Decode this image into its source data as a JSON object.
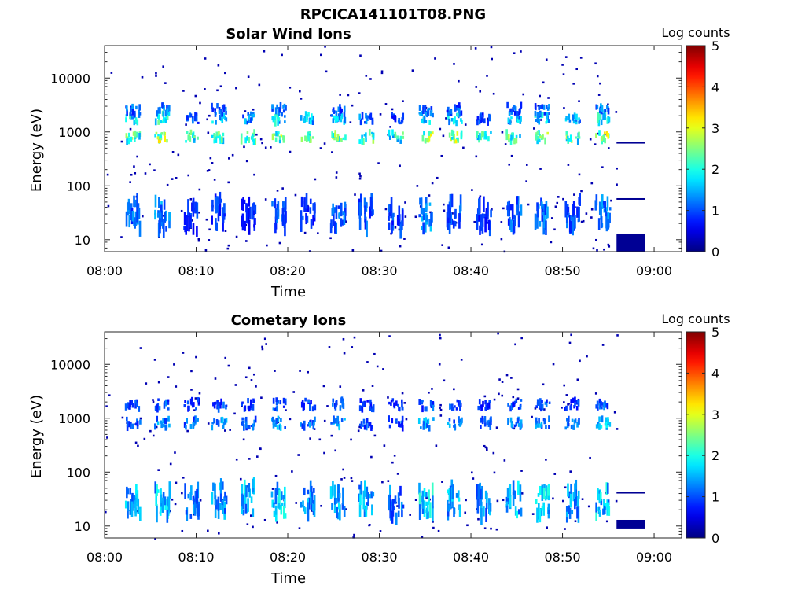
{
  "figure_title": "RPCICA141101T08.PNG",
  "chart_data": [
    {
      "type": "heatmap",
      "title": "Solar Wind Ions",
      "xlabel": "Time",
      "ylabel": "Energy (eV)",
      "colorbar_label": "Log counts",
      "x_ticks": [
        "08:00",
        "08:10",
        "08:20",
        "08:30",
        "08:40",
        "08:50",
        "09:00"
      ],
      "xlim_minutes": [
        0,
        63
      ],
      "y_scale": "log",
      "ylim": [
        6,
        40000
      ],
      "y_ticks": [
        {
          "value": 10,
          "label": "10"
        },
        {
          "value": 100,
          "label": "100"
        },
        {
          "value": 1000,
          "label": "1000"
        },
        {
          "value": 10000,
          "label": "10000"
        }
      ],
      "clim": [
        0,
        5
      ],
      "colorbar_ticks": [
        "0",
        "1",
        "2",
        "3",
        "4",
        "5"
      ],
      "data_end_minute": 55.9,
      "bursts": [
        {
          "t": 3.0,
          "bands": [
            {
              "e": 800,
              "v": 2.6
            },
            {
              "e": 1800,
              "v": 2.1
            },
            {
              "e": 2600,
              "v": 1.3
            },
            {
              "e": 30,
              "v": 1.3
            }
          ]
        },
        {
          "t": 6.2,
          "bands": [
            {
              "e": 800,
              "v": 3.0
            },
            {
              "e": 1800,
              "v": 2.2
            },
            {
              "e": 2600,
              "v": 1.4
            },
            {
              "e": 28,
              "v": 1.5
            }
          ]
        },
        {
          "t": 9.4,
          "bands": [
            {
              "e": 800,
              "v": 2.4
            },
            {
              "e": 1800,
              "v": 1.2
            },
            {
              "e": 25,
              "v": 1.0
            }
          ]
        },
        {
          "t": 12.4,
          "bands": [
            {
              "e": 800,
              "v": 2.6
            },
            {
              "e": 1800,
              "v": 1.9
            },
            {
              "e": 2600,
              "v": 1.3
            },
            {
              "e": 30,
              "v": 1.0
            }
          ]
        },
        {
          "t": 15.6,
          "bands": [
            {
              "e": 800,
              "v": 2.3
            },
            {
              "e": 1800,
              "v": 1.5
            },
            {
              "e": 30,
              "v": 0.9
            }
          ]
        },
        {
          "t": 18.9,
          "bands": [
            {
              "e": 800,
              "v": 2.8
            },
            {
              "e": 1800,
              "v": 2.0
            },
            {
              "e": 2600,
              "v": 1.3
            },
            {
              "e": 28,
              "v": 1.3
            }
          ]
        },
        {
          "t": 22.1,
          "bands": [
            {
              "e": 800,
              "v": 2.5
            },
            {
              "e": 1800,
              "v": 1.8
            },
            {
              "e": 30,
              "v": 1.0
            }
          ]
        },
        {
          "t": 25.4,
          "bands": [
            {
              "e": 800,
              "v": 2.8
            },
            {
              "e": 1800,
              "v": 2.0
            },
            {
              "e": 2600,
              "v": 1.2
            },
            {
              "e": 28,
              "v": 1.3
            }
          ]
        },
        {
          "t": 28.5,
          "bands": [
            {
              "e": 800,
              "v": 2.5
            },
            {
              "e": 1800,
              "v": 1.4
            },
            {
              "e": 30,
              "v": 1.2
            }
          ]
        },
        {
          "t": 31.7,
          "bands": [
            {
              "e": 800,
              "v": 2.3
            },
            {
              "e": 1800,
              "v": 1.0
            },
            {
              "e": 25,
              "v": 1.1
            }
          ]
        },
        {
          "t": 35.0,
          "bands": [
            {
              "e": 800,
              "v": 3.0
            },
            {
              "e": 1800,
              "v": 2.1
            },
            {
              "e": 2600,
              "v": 1.4
            },
            {
              "e": 28,
              "v": 1.6
            }
          ]
        },
        {
          "t": 38.1,
          "bands": [
            {
              "e": 800,
              "v": 2.9
            },
            {
              "e": 1800,
              "v": 2.0
            },
            {
              "e": 2600,
              "v": 1.2
            },
            {
              "e": 30,
              "v": 1.2
            }
          ]
        },
        {
          "t": 41.3,
          "bands": [
            {
              "e": 800,
              "v": 2.3
            },
            {
              "e": 1800,
              "v": 1.2
            },
            {
              "e": 28,
              "v": 1.0
            }
          ]
        },
        {
          "t": 44.6,
          "bands": [
            {
              "e": 800,
              "v": 2.6
            },
            {
              "e": 1800,
              "v": 1.8
            },
            {
              "e": 2600,
              "v": 1.2
            },
            {
              "e": 30,
              "v": 1.3
            }
          ]
        },
        {
          "t": 47.7,
          "bands": [
            {
              "e": 800,
              "v": 2.7
            },
            {
              "e": 1800,
              "v": 1.9
            },
            {
              "e": 2600,
              "v": 1.3
            },
            {
              "e": 28,
              "v": 1.4
            }
          ]
        },
        {
          "t": 51.0,
          "bands": [
            {
              "e": 800,
              "v": 2.5
            },
            {
              "e": 1800,
              "v": 1.6
            },
            {
              "e": 30,
              "v": 1.2
            }
          ]
        },
        {
          "t": 54.3,
          "bands": [
            {
              "e": 800,
              "v": 3.0
            },
            {
              "e": 1800,
              "v": 2.1
            },
            {
              "e": 2600,
              "v": 1.4
            },
            {
              "e": 30,
              "v": 1.5
            }
          ]
        }
      ],
      "trailing_marks": [
        {
          "t0": 55.9,
          "t1": 59.0,
          "e_low": 620,
          "e_high": 650,
          "v": 0.1
        },
        {
          "t0": 55.9,
          "t1": 59.0,
          "e_low": 56,
          "e_high": 59,
          "v": 0.1
        },
        {
          "t0": 55.9,
          "t1": 59.0,
          "e_low": 6,
          "e_high": 13,
          "v": 0.1
        }
      ]
    },
    {
      "type": "heatmap",
      "title": "Cometary Ions",
      "xlabel": "Time",
      "ylabel": "Energy (eV)",
      "colorbar_label": "Log counts",
      "x_ticks": [
        "08:00",
        "08:10",
        "08:20",
        "08:30",
        "08:40",
        "08:50",
        "09:00"
      ],
      "xlim_minutes": [
        0,
        63
      ],
      "y_scale": "log",
      "ylim": [
        6,
        40000
      ],
      "y_ticks": [
        {
          "value": 10,
          "label": "10"
        },
        {
          "value": 100,
          "label": "100"
        },
        {
          "value": 1000,
          "label": "1000"
        },
        {
          "value": 10000,
          "label": "10000"
        }
      ],
      "clim": [
        0,
        5
      ],
      "colorbar_ticks": [
        "0",
        "1",
        "2",
        "3",
        "4",
        "5"
      ],
      "data_end_minute": 55.9,
      "bursts": [
        {
          "t": 3.0,
          "bands": [
            {
              "e": 800,
              "v": 1.3
            },
            {
              "e": 1800,
              "v": 1.1
            },
            {
              "e": 30,
              "v": 1.7
            }
          ]
        },
        {
          "t": 6.2,
          "bands": [
            {
              "e": 800,
              "v": 1.5
            },
            {
              "e": 1800,
              "v": 1.2
            },
            {
              "e": 28,
              "v": 1.9
            }
          ]
        },
        {
          "t": 9.4,
          "bands": [
            {
              "e": 800,
              "v": 1.3
            },
            {
              "e": 1800,
              "v": 1.0
            },
            {
              "e": 28,
              "v": 1.5
            }
          ]
        },
        {
          "t": 12.4,
          "bands": [
            {
              "e": 800,
              "v": 1.5
            },
            {
              "e": 1800,
              "v": 1.1
            },
            {
              "e": 30,
              "v": 1.6
            }
          ]
        },
        {
          "t": 15.6,
          "bands": [
            {
              "e": 800,
              "v": 1.2
            },
            {
              "e": 1800,
              "v": 1.0
            },
            {
              "e": 30,
              "v": 1.8
            }
          ]
        },
        {
          "t": 18.9,
          "bands": [
            {
              "e": 800,
              "v": 1.6
            },
            {
              "e": 1800,
              "v": 1.2
            },
            {
              "e": 28,
              "v": 2.0
            }
          ]
        },
        {
          "t": 22.1,
          "bands": [
            {
              "e": 800,
              "v": 1.4
            },
            {
              "e": 1800,
              "v": 1.1
            },
            {
              "e": 30,
              "v": 1.6
            }
          ]
        },
        {
          "t": 25.4,
          "bands": [
            {
              "e": 800,
              "v": 1.6
            },
            {
              "e": 1800,
              "v": 1.2
            },
            {
              "e": 28,
              "v": 1.8
            }
          ]
        },
        {
          "t": 28.5,
          "bands": [
            {
              "e": 800,
              "v": 1.2
            },
            {
              "e": 1800,
              "v": 1.0
            },
            {
              "e": 30,
              "v": 1.7
            }
          ]
        },
        {
          "t": 31.7,
          "bands": [
            {
              "e": 800,
              "v": 1.1
            },
            {
              "e": 1800,
              "v": 1.0
            },
            {
              "e": 25,
              "v": 1.4
            }
          ]
        },
        {
          "t": 35.0,
          "bands": [
            {
              "e": 800,
              "v": 1.6
            },
            {
              "e": 1800,
              "v": 1.2
            },
            {
              "e": 28,
              "v": 2.0
            }
          ]
        },
        {
          "t": 38.1,
          "bands": [
            {
              "e": 800,
              "v": 1.5
            },
            {
              "e": 1800,
              "v": 1.1
            },
            {
              "e": 30,
              "v": 1.7
            }
          ]
        },
        {
          "t": 41.3,
          "bands": [
            {
              "e": 800,
              "v": 1.2
            },
            {
              "e": 1800,
              "v": 1.0
            },
            {
              "e": 28,
              "v": 1.5
            }
          ]
        },
        {
          "t": 44.6,
          "bands": [
            {
              "e": 800,
              "v": 1.4
            },
            {
              "e": 1800,
              "v": 1.1
            },
            {
              "e": 30,
              "v": 1.8
            }
          ]
        },
        {
          "t": 47.7,
          "bands": [
            {
              "e": 800,
              "v": 1.5
            },
            {
              "e": 1800,
              "v": 1.2
            },
            {
              "e": 28,
              "v": 1.9
            }
          ]
        },
        {
          "t": 51.0,
          "bands": [
            {
              "e": 800,
              "v": 1.4
            },
            {
              "e": 1800,
              "v": 1.0
            },
            {
              "e": 30,
              "v": 1.6
            }
          ]
        },
        {
          "t": 54.3,
          "bands": [
            {
              "e": 800,
              "v": 1.8
            },
            {
              "e": 1800,
              "v": 1.3
            },
            {
              "e": 28,
              "v": 1.9
            }
          ]
        }
      ],
      "trailing_marks": [
        {
          "t0": 55.9,
          "t1": 59.0,
          "e_low": 40,
          "e_high": 43,
          "v": 0.1
        },
        {
          "t0": 55.9,
          "t1": 59.0,
          "e_low": 9,
          "e_high": 13,
          "v": 0.1
        }
      ]
    }
  ]
}
